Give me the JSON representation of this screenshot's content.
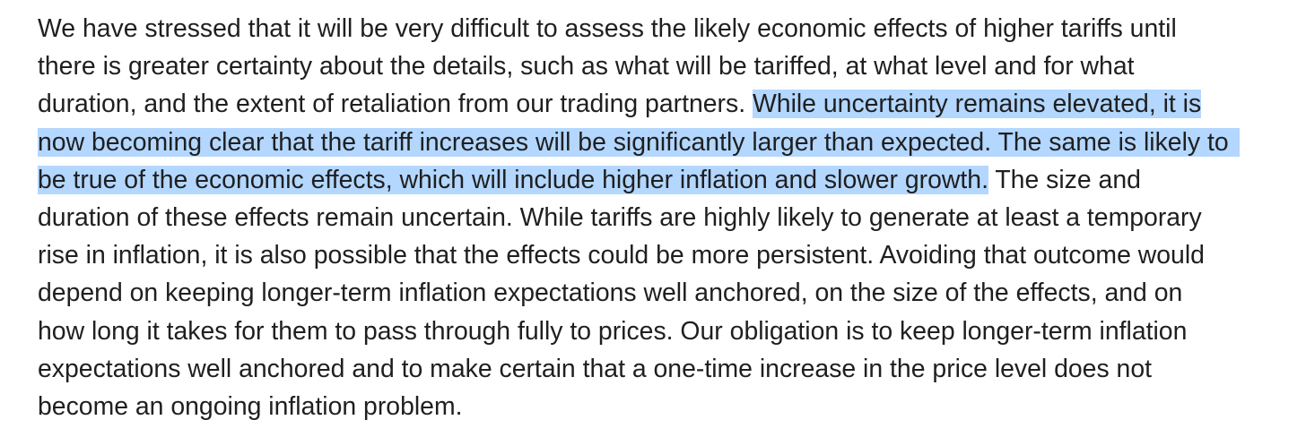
{
  "paragraph": {
    "line1": "We have stressed that it will be very difficult to assess the likely economic effects of higher tariffs until",
    "line2": "there is greater certainty about the details, such as what will be tariffed, at what level and for what",
    "line3_plain": "duration, and the extent of retaliation from our trading partners. ",
    "line3_selected": "While uncertainty remains elevated, it is",
    "line4_selected": "now becoming clear that the tariff increases will be significantly larger than expected. The same is likely to",
    "line5_selected": "be true of the economic effects, which will include higher inflation and slower growth.",
    "line5_plain": " The size and",
    "line6": "duration of these effects remain uncertain. While tariffs are highly likely to generate at least a temporary",
    "line7": "rise in inflation, it is also possible that the effects could be more persistent. Avoiding that outcome would",
    "line8": "depend on keeping longer-term inflation expectations well anchored, on the size of the effects, and on",
    "line9": "how long it takes for them to pass through fully to prices. Our obligation is to keep longer-term inflation",
    "line10": "expectations well anchored and to make certain that a one-time increase in the price level does not",
    "line11": "become an ongoing inflation problem."
  },
  "colors": {
    "text": "#1f1f1f",
    "selection": "#b3d7ff",
    "background": "#ffffff"
  }
}
